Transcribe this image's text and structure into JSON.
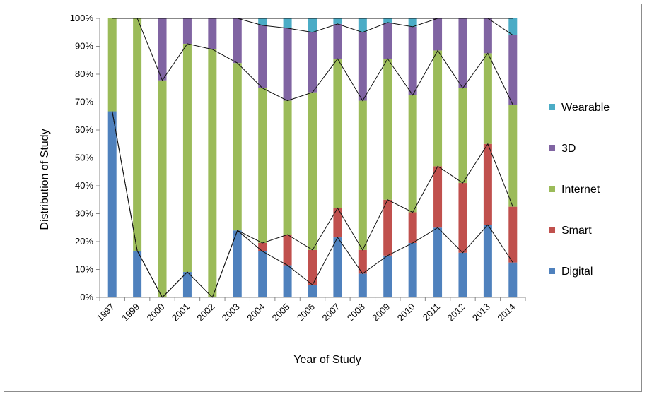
{
  "chart_data": {
    "type": "bar",
    "stacked": true,
    "normalized": true,
    "xlabel": "Year of Study",
    "ylabel": "Distribution of Study",
    "ylim": [
      0,
      100
    ],
    "yticks": [
      "0%",
      "10%",
      "20%",
      "30%",
      "40%",
      "50%",
      "60%",
      "70%",
      "80%",
      "90%",
      "100%"
    ],
    "categories": [
      "1997",
      "1999",
      "2000",
      "2001",
      "2002",
      "2003",
      "2004",
      "2005",
      "2006",
      "2007",
      "2008",
      "2009",
      "2010",
      "2011",
      "2012",
      "2013",
      "2014"
    ],
    "series": [
      {
        "name": "Digital",
        "color": "#4f81bd",
        "values": [
          66.7,
          16.7,
          0,
          9.1,
          0,
          24,
          16.5,
          11.5,
          4.5,
          21.5,
          8.5,
          15,
          19.5,
          25,
          16,
          26,
          12.5
        ]
      },
      {
        "name": "Smart",
        "color": "#c0504d",
        "values": [
          0,
          0,
          0,
          0,
          0,
          0,
          3,
          11,
          12.5,
          10.5,
          8.5,
          20,
          11,
          22,
          25,
          29,
          20
        ]
      },
      {
        "name": "Internet",
        "color": "#9bbb59",
        "values": [
          33.3,
          83.3,
          77.8,
          81.8,
          88.9,
          60,
          55.5,
          48,
          56.5,
          53.5,
          53.5,
          50.5,
          42,
          41.5,
          34,
          32.5,
          36.5
        ]
      },
      {
        "name": "3D",
        "color": "#8064a2",
        "values": [
          0,
          0,
          22.2,
          9.1,
          11.1,
          16,
          22.5,
          26,
          21.5,
          12.5,
          24.5,
          13,
          24.5,
          11.5,
          25,
          12.5,
          25
        ]
      },
      {
        "name": "Wearable",
        "color": "#4bacc6",
        "values": [
          0,
          0,
          0,
          0,
          0,
          0,
          2.5,
          3.5,
          5,
          2,
          5,
          1.5,
          3,
          0,
          0,
          0,
          6
        ]
      }
    ],
    "boundary_lines": true,
    "grid": false,
    "legend_position": "right"
  }
}
